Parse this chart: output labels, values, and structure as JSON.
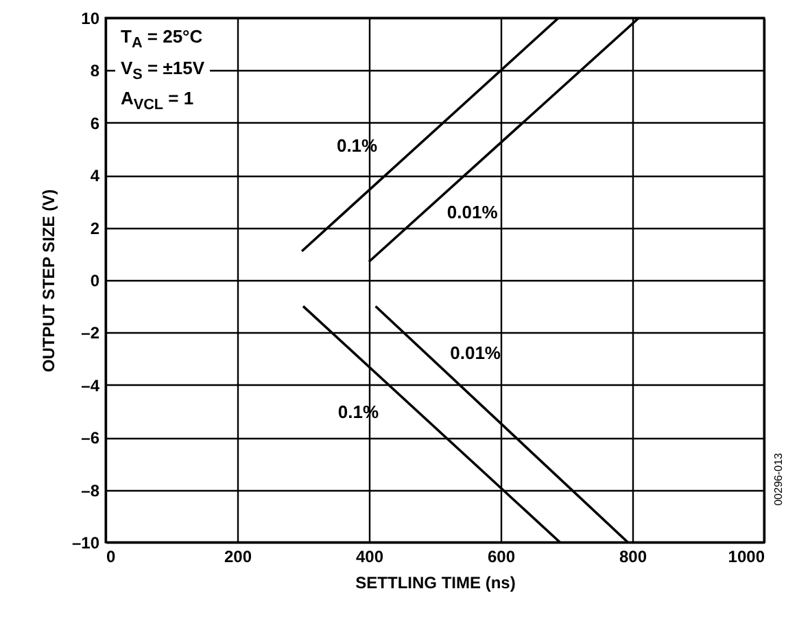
{
  "chart_data": {
    "type": "line",
    "xlabel": "SETTLING TIME (ns)",
    "ylabel": "OUTPUT STEP SIZE (V)",
    "xlim": [
      0,
      1000
    ],
    "xticks": [
      0,
      200,
      400,
      600,
      800,
      1000
    ],
    "ylim": [
      -10,
      10
    ],
    "yticks": [
      {
        "value": -10,
        "label": "–10"
      },
      {
        "value": -8,
        "label": "–8"
      },
      {
        "value": -6,
        "label": "–6"
      },
      {
        "value": -4,
        "label": "–4"
      },
      {
        "value": -2,
        "label": "–2"
      },
      0,
      2,
      4,
      6,
      8,
      10
    ],
    "grid": true,
    "line_style": "solid",
    "series": [
      {
        "name": "0.1%",
        "color": "#000000",
        "x": [
          298,
          688
        ],
        "values": [
          1.1,
          10
        ]
      },
      {
        "name": "0.01%",
        "color": "#000000",
        "x": [
          400,
          810
        ],
        "values": [
          0.7,
          10
        ]
      },
      {
        "name": "0.01%",
        "color": "#000000",
        "x": [
          410,
          793
        ],
        "values": [
          -1,
          -10
        ]
      },
      {
        "name": "0.1%",
        "color": "#000000",
        "x": [
          300,
          690
        ],
        "values": [
          -1,
          -10
        ]
      }
    ],
    "annotations": [
      "T$_{A}$ = 25°C",
      "V$_{S}$ = ±15V",
      "A$_{VCL}$ = 1",
      "00296-013"
    ]
  }
}
